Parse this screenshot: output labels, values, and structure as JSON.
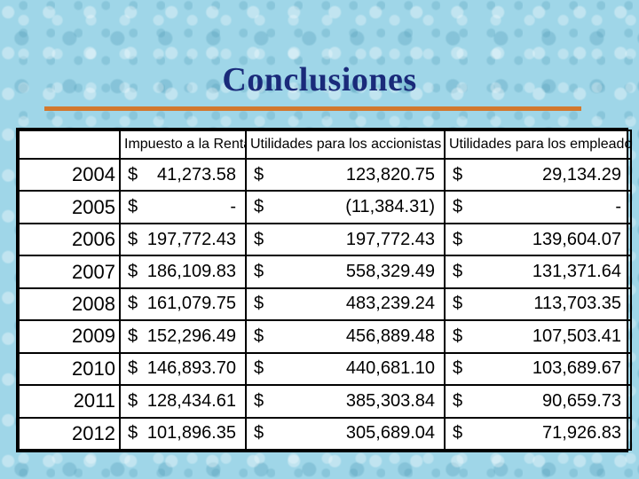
{
  "title": "Conclusiones",
  "table": {
    "headers": [
      "",
      "Impuesto a la Renta",
      "Utilidades para los accionistas",
      "Utilidades para los empleados"
    ],
    "rows": [
      {
        "year": "2004",
        "cur1": "$",
        "impuesto": "41,273.58",
        "cur2": "$",
        "accionistas": "123,820.75",
        "cur3": "$",
        "empleados": "29,134.29"
      },
      {
        "year": "2005",
        "cur1": "$",
        "impuesto": "-",
        "cur2": "$",
        "accionistas": "(11,384.31)",
        "cur3": "$",
        "empleados": "-"
      },
      {
        "year": "2006",
        "cur1": "$",
        "impuesto": "197,772.43",
        "cur2": "$",
        "accionistas": "197,772.43",
        "cur3": "$",
        "empleados": "139,604.07"
      },
      {
        "year": "2007",
        "cur1": "$",
        "impuesto": "186,109.83",
        "cur2": "$",
        "accionistas": "558,329.49",
        "cur3": "$",
        "empleados": "131,371.64"
      },
      {
        "year": "2008",
        "cur1": "$",
        "impuesto": "161,079.75",
        "cur2": "$",
        "accionistas": "483,239.24",
        "cur3": "$",
        "empleados": "113,703.35"
      },
      {
        "year": "2009",
        "cur1": "$",
        "impuesto": "152,296.49",
        "cur2": "$",
        "accionistas": "456,889.48",
        "cur3": "$",
        "empleados": "107,503.41"
      },
      {
        "year": "2010",
        "cur1": "$",
        "impuesto": "146,893.70",
        "cur2": "$",
        "accionistas": "440,681.10",
        "cur3": "$",
        "empleados": "103,689.67"
      },
      {
        "year": "2011",
        "cur1": "$",
        "impuesto": "128,434.61",
        "cur2": "$",
        "accionistas": "385,303.84",
        "cur3": "$",
        "empleados": "90,659.73"
      },
      {
        "year": "2012",
        "cur1": "$",
        "impuesto": "101,896.35",
        "cur2": "$",
        "accionistas": "305,689.04",
        "cur3": "$",
        "empleados": "71,926.83"
      }
    ]
  },
  "colors": {
    "title": "#1a2a7a",
    "rule": "#d2782e",
    "background": "#9fd6e8"
  }
}
